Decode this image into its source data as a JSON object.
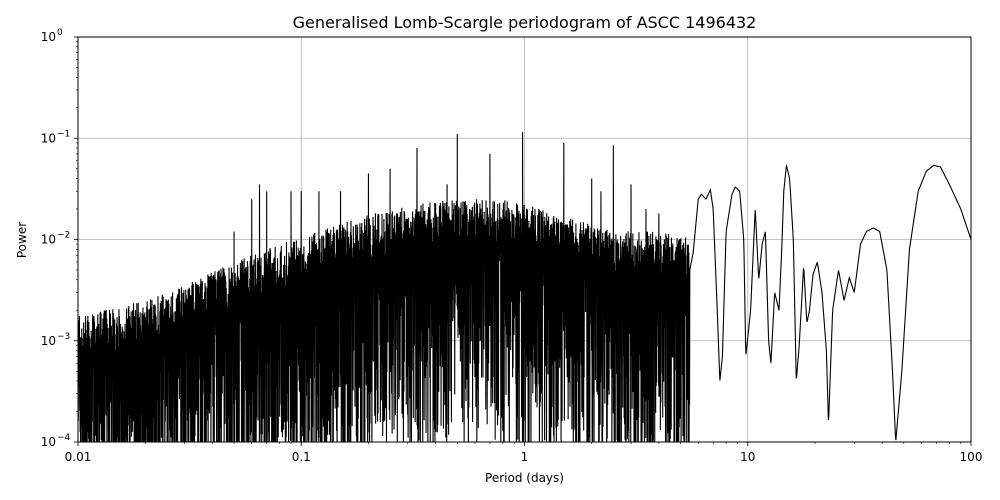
{
  "chart_data": {
    "type": "line",
    "title": "Generalised Lomb-Scargle periodogram of ASCC 1496432",
    "xlabel": "Period (days)",
    "ylabel": "Power",
    "x_scale": "log",
    "y_scale": "log",
    "xlim": [
      0.01,
      100
    ],
    "ylim": [
      0.0001,
      1
    ],
    "grid": true,
    "line_color": "#000000",
    "x_ticks": [
      {
        "value": 0.01,
        "label": "0.01"
      },
      {
        "value": 0.1,
        "label": "0.1"
      },
      {
        "value": 1,
        "label": "1"
      },
      {
        "value": 10,
        "label": "10"
      },
      {
        "value": 100,
        "label": "100"
      }
    ],
    "y_ticks": [
      {
        "value": 0.0001,
        "base": "10",
        "exp": "−4"
      },
      {
        "value": 0.001,
        "base": "10",
        "exp": "−3"
      },
      {
        "value": 0.01,
        "base": "10",
        "exp": "−2"
      },
      {
        "value": 0.1,
        "base": "10",
        "exp": "−1"
      },
      {
        "value": 1,
        "base": "10",
        "exp": "0"
      }
    ],
    "noise_envelope": [
      [
        0.01,
        0.0018
      ],
      [
        0.02,
        0.0025
      ],
      [
        0.03,
        0.0035
      ],
      [
        0.05,
        0.006
      ],
      [
        0.08,
        0.009
      ],
      [
        0.12,
        0.012
      ],
      [
        0.2,
        0.018
      ],
      [
        0.3,
        0.022
      ],
      [
        0.5,
        0.025
      ],
      [
        0.8,
        0.025
      ],
      [
        1.2,
        0.02
      ],
      [
        2.0,
        0.014
      ],
      [
        3.0,
        0.012
      ],
      [
        4.5,
        0.012
      ],
      [
        6.0,
        0.01
      ]
    ],
    "peaks": [
      [
        0.05,
        0.012
      ],
      [
        0.06,
        0.025
      ],
      [
        0.065,
        0.035
      ],
      [
        0.07,
        0.03
      ],
      [
        0.09,
        0.03
      ],
      [
        0.1,
        0.03
      ],
      [
        0.12,
        0.03
      ],
      [
        0.15,
        0.03
      ],
      [
        0.2,
        0.045
      ],
      [
        0.25,
        0.05
      ],
      [
        0.33,
        0.08
      ],
      [
        0.45,
        0.035
      ],
      [
        0.5,
        0.11
      ],
      [
        0.7,
        0.07
      ],
      [
        0.98,
        0.115
      ],
      [
        1.5,
        0.09
      ],
      [
        2.0,
        0.04
      ],
      [
        2.2,
        0.03
      ],
      [
        2.5,
        0.085
      ],
      [
        3.0,
        0.035
      ],
      [
        3.5,
        0.02
      ],
      [
        4.0,
        0.018
      ]
    ],
    "long_period_curve": [
      [
        5.5,
        0.005
      ],
      [
        5.7,
        0.0075
      ],
      [
        6.0,
        0.025
      ],
      [
        6.2,
        0.028
      ],
      [
        6.5,
        0.025
      ],
      [
        6.8,
        0.031
      ],
      [
        7.0,
        0.02
      ],
      [
        7.3,
        0.002
      ],
      [
        7.5,
        0.0004
      ],
      [
        7.7,
        0.0007
      ],
      [
        8.0,
        0.012
      ],
      [
        8.5,
        0.028
      ],
      [
        8.8,
        0.033
      ],
      [
        9.2,
        0.03
      ],
      [
        9.6,
        0.01
      ],
      [
        9.8,
        0.0007
      ],
      [
        10.3,
        0.002
      ],
      [
        10.8,
        0.02
      ],
      [
        11.2,
        0.004
      ],
      [
        11.6,
        0.009
      ],
      [
        12.0,
        0.012
      ],
      [
        12.4,
        0.001
      ],
      [
        12.7,
        0.0006
      ],
      [
        13.2,
        0.003
      ],
      [
        13.8,
        0.002
      ],
      [
        14.2,
        0.008
      ],
      [
        14.5,
        0.03
      ],
      [
        14.9,
        0.054
      ],
      [
        15.4,
        0.04
      ],
      [
        16.0,
        0.01
      ],
      [
        16.5,
        0.0004
      ],
      [
        17.0,
        0.0009
      ],
      [
        17.8,
        0.0055
      ],
      [
        18.4,
        0.0015
      ],
      [
        18.9,
        0.002
      ],
      [
        19.6,
        0.0045
      ],
      [
        20.5,
        0.006
      ],
      [
        21.5,
        0.003
      ],
      [
        22.5,
        0.0008
      ],
      [
        23.0,
        0.00015
      ],
      [
        24.0,
        0.002
      ],
      [
        25.5,
        0.005
      ],
      [
        27.0,
        0.0025
      ],
      [
        28.5,
        0.0042
      ],
      [
        30.0,
        0.003
      ],
      [
        32.0,
        0.009
      ],
      [
        34.0,
        0.012
      ],
      [
        36.5,
        0.013
      ],
      [
        39.0,
        0.012
      ],
      [
        42.0,
        0.005
      ],
      [
        44.5,
        0.0005
      ],
      [
        46.0,
        0.0001
      ],
      [
        49.0,
        0.0005
      ],
      [
        53.0,
        0.008
      ],
      [
        58.0,
        0.03
      ],
      [
        63.0,
        0.047
      ],
      [
        68.0,
        0.054
      ],
      [
        73.0,
        0.052
      ],
      [
        80.0,
        0.035
      ],
      [
        90.0,
        0.02
      ],
      [
        100.0,
        0.01
      ]
    ]
  }
}
